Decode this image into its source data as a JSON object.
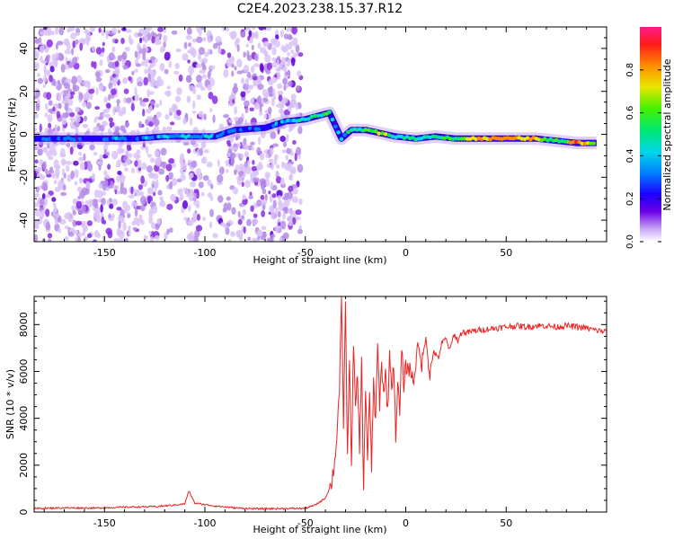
{
  "figure_title": "C2E4.2023.238.15.37.R12",
  "colors": {
    "snr_line": "#ee2222",
    "track_core": "#e8182a",
    "track_mid": "#00ee55",
    "track_outer": "#2a00dd",
    "noise": "#8a2be2",
    "frame": "#000000"
  },
  "chart_data": [
    {
      "type": "heatmap",
      "title": "",
      "xlabel": "Height of straight line (km)",
      "ylabel": "Frequency (Hz)",
      "xlim": [
        -185,
        100
      ],
      "ylim": [
        -50,
        50
      ],
      "xticks": [
        -150,
        -100,
        -50,
        0,
        50
      ],
      "yticks": [
        -40,
        -20,
        0,
        20,
        40
      ],
      "colorbar": {
        "label": "Normalized spectral amplitude",
        "range": [
          0,
          1
        ],
        "ticks": [
          "0.0",
          "0.2",
          "0.4",
          "0.6",
          "0.8"
        ]
      },
      "noise_region": [
        -185,
        -52
      ],
      "signal_track": [
        {
          "x": -185,
          "f": -2,
          "a": 0.28
        },
        {
          "x": -165,
          "f": -2,
          "a": 0.3
        },
        {
          "x": -150,
          "f": -2,
          "a": 0.32
        },
        {
          "x": -135,
          "f": -2,
          "a": 0.35
        },
        {
          "x": -120,
          "f": -1,
          "a": 0.4
        },
        {
          "x": -105,
          "f": -1,
          "a": 0.42
        },
        {
          "x": -95,
          "f": -1,
          "a": 0.38
        },
        {
          "x": -85,
          "f": 2,
          "a": 0.3
        },
        {
          "x": -70,
          "f": 3,
          "a": 0.3
        },
        {
          "x": -60,
          "f": 6,
          "a": 0.4
        },
        {
          "x": -50,
          "f": 7,
          "a": 0.45
        },
        {
          "x": -42,
          "f": 9,
          "a": 0.55
        },
        {
          "x": -38,
          "f": 10,
          "a": 0.55
        },
        {
          "x": -35,
          "f": 4,
          "a": 0.4
        },
        {
          "x": -32,
          "f": -2,
          "a": 0.4
        },
        {
          "x": -27,
          "f": 2,
          "a": 0.5
        },
        {
          "x": -20,
          "f": 2,
          "a": 0.55
        },
        {
          "x": -15,
          "f": 1,
          "a": 0.75
        },
        {
          "x": -10,
          "f": 0,
          "a": 0.7
        },
        {
          "x": -5,
          "f": -1,
          "a": 0.55
        },
        {
          "x": 5,
          "f": -2,
          "a": 0.5
        },
        {
          "x": 15,
          "f": -1,
          "a": 0.55
        },
        {
          "x": 25,
          "f": -2,
          "a": 0.6
        },
        {
          "x": 35,
          "f": -2,
          "a": 0.82
        },
        {
          "x": 45,
          "f": -2,
          "a": 0.85
        },
        {
          "x": 55,
          "f": -2,
          "a": 0.85
        },
        {
          "x": 65,
          "f": -2,
          "a": 0.82
        },
        {
          "x": 75,
          "f": -3,
          "a": 0.55
        },
        {
          "x": 85,
          "f": -4,
          "a": 0.9
        },
        {
          "x": 95,
          "f": -4,
          "a": 0.7
        }
      ]
    },
    {
      "type": "line",
      "title": "",
      "xlabel": "Height of straight line (km)",
      "ylabel": "SNR (10 * v/v)",
      "xlim": [
        -185,
        100
      ],
      "ylim": [
        0,
        9200
      ],
      "xticks": [
        -150,
        -100,
        -50,
        0,
        50
      ],
      "yticks": [
        0,
        2000,
        4000,
        6000,
        8000
      ],
      "series": [
        {
          "x": [
            -185,
            -170,
            -155,
            -140,
            -125,
            -115,
            -110,
            -108,
            -105,
            -95,
            -85,
            -75,
            -60,
            -50,
            -45,
            -40,
            -37,
            -35,
            -33,
            -32,
            -31,
            -30,
            -29,
            -28,
            -27,
            -26,
            -25,
            -24,
            -23,
            -22,
            -21,
            -20,
            -19,
            -18,
            -17,
            -16,
            -15,
            -14,
            -13,
            -12,
            -11,
            -10,
            -9,
            -8,
            -7,
            -6,
            -5,
            -4,
            -3,
            -2,
            -1,
            0,
            2,
            4,
            6,
            8,
            10,
            12,
            14,
            16,
            18,
            20,
            22,
            24,
            26,
            28,
            30,
            35,
            40,
            45,
            50,
            55,
            60,
            65,
            70,
            75,
            80,
            85,
            90,
            95,
            100
          ],
          "y": [
            150,
            180,
            170,
            210,
            230,
            300,
            350,
            900,
            380,
            260,
            180,
            140,
            150,
            160,
            300,
            600,
            1200,
            2400,
            5200,
            9100,
            3800,
            8900,
            2300,
            6600,
            1900,
            7200,
            4300,
            5900,
            2600,
            6500,
            900,
            5400,
            2300,
            4900,
            1900,
            5600,
            3800,
            7200,
            4600,
            6300,
            5100,
            5900,
            4300,
            6800,
            5300,
            6400,
            3300,
            5500,
            4200,
            6900,
            5400,
            6200,
            6100,
            5600,
            7200,
            6300,
            7500,
            5800,
            6900,
            6500,
            7200,
            7400,
            6900,
            7600,
            7300,
            7700,
            7650,
            7750,
            7800,
            7850,
            7900,
            7950,
            7900,
            7950,
            7950,
            7900,
            7950,
            7900,
            7850,
            7750,
            7700
          ]
        }
      ]
    }
  ]
}
